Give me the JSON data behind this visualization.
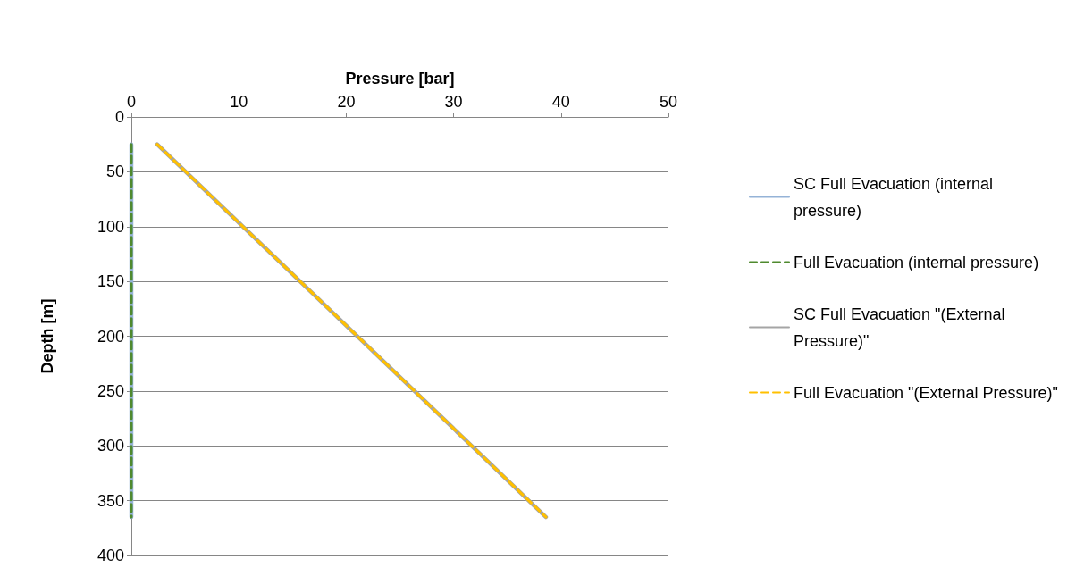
{
  "chart_data": {
    "type": "line",
    "xlabel": "Pressure [bar]",
    "ylabel": "Depth [m]",
    "xlim": [
      0,
      50
    ],
    "xticks": [
      0,
      10,
      20,
      30,
      40,
      50
    ],
    "ylim": [
      400,
      0
    ],
    "yticks": [
      0,
      50,
      100,
      150,
      200,
      250,
      300,
      350,
      400
    ],
    "grid": "y",
    "legend": "right",
    "marker": "none",
    "series": [
      {
        "name": "SC Full Evacuation (internal pressure)",
        "color": "#95b3d7",
        "line_style": "solid",
        "x": [
          0,
          0,
          0,
          0,
          0
        ],
        "values": [
          25,
          100,
          200,
          300,
          365
        ]
      },
      {
        "name": "Full Evacuation (internal pressure)",
        "color": "#4f8a2e",
        "line_style": "dashed",
        "x": [
          0,
          0,
          0,
          0,
          0
        ],
        "values": [
          25,
          100,
          200,
          300,
          365
        ]
      },
      {
        "name": "SC Full Evacuation \"(External Pressure)\"",
        "color": "#a5a5a5",
        "line_style": "solid",
        "x": [
          2.4,
          38.6
        ],
        "values": [
          25,
          365
        ]
      },
      {
        "name": "Full Evacuation \"(External Pressure)\"",
        "color": "#ffc000",
        "line_style": "dashed",
        "x": [
          2.4,
          38.6
        ],
        "values": [
          25,
          365
        ]
      }
    ]
  }
}
